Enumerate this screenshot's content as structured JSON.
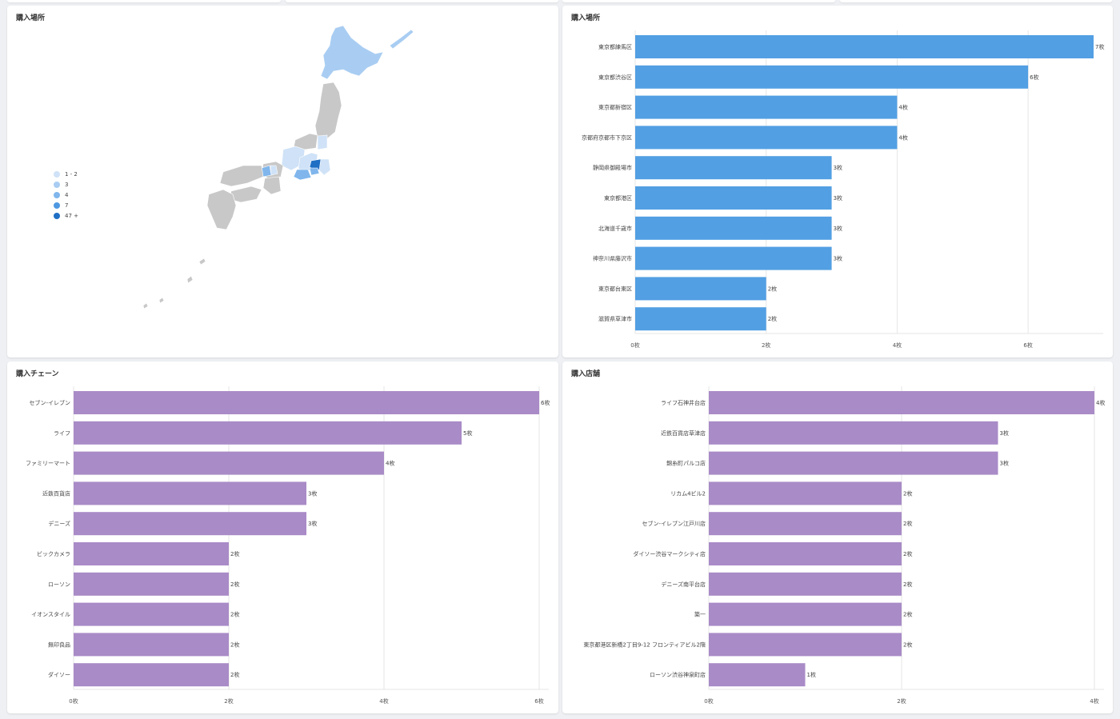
{
  "panels": {
    "map": {
      "title": "購入場所"
    },
    "places": {
      "title": "購入場所"
    },
    "chains": {
      "title": "購入チェーン"
    },
    "stores": {
      "title": "購入店舗"
    }
  },
  "map_legend": [
    {
      "label": "1 - 2",
      "color": "#cfe2f7"
    },
    {
      "label": "3",
      "color": "#a9cdf2"
    },
    {
      "label": "4",
      "color": "#80b6ec"
    },
    {
      "label": "7",
      "color": "#4e98e2"
    },
    {
      "label": "47 +",
      "color": "#1f6fc4"
    }
  ],
  "map_colors": {
    "other": "#c8c8c8",
    "hokkaido": "#a9cdf2",
    "tokyo": "#1f6fc4",
    "light": "#cfe2f7",
    "mid": "#80b6ec"
  },
  "chart_data": [
    {
      "type": "bar",
      "orientation": "horizontal",
      "color": "#529fe3",
      "categories": [
        "東京都練馬区",
        "東京都渋谷区",
        "東京都新宿区",
        "京都府京都市下京区",
        "静岡県御殿場市",
        "東京都港区",
        "北海道千歳市",
        "神奈川県藤沢市",
        "東京都台東区",
        "滋賀県草津市"
      ],
      "values": [
        7,
        6,
        4,
        4,
        3,
        3,
        3,
        3,
        2,
        2
      ],
      "value_labels": [
        "7枚",
        "6枚",
        "4枚",
        "4枚",
        "3枚",
        "3枚",
        "3枚",
        "3枚",
        "2枚",
        "2枚"
      ],
      "xlim": [
        0,
        7
      ],
      "xticks": [
        0,
        2,
        4,
        6
      ],
      "xtick_labels": [
        "0枚",
        "2枚",
        "4枚",
        "6枚"
      ],
      "grid": true
    },
    {
      "type": "bar",
      "orientation": "horizontal",
      "color": "#a98bc7",
      "categories": [
        "セブン-イレブン",
        "ライフ",
        "ファミリーマート",
        "近鉄百貨店",
        "デニーズ",
        "ビックカメラ",
        "ローソン",
        "イオンスタイル",
        "無印良品",
        "ダイソー"
      ],
      "values": [
        6,
        5,
        4,
        3,
        3,
        2,
        2,
        2,
        2,
        2
      ],
      "value_labels": [
        "6枚",
        "5枚",
        "4枚",
        "3枚",
        "3枚",
        "2枚",
        "2枚",
        "2枚",
        "2枚",
        "2枚"
      ],
      "xlim": [
        0,
        6
      ],
      "xticks": [
        0,
        2,
        4,
        6
      ],
      "xtick_labels": [
        "0枚",
        "2枚",
        "4枚",
        "6枚"
      ],
      "grid": true
    },
    {
      "type": "bar",
      "orientation": "horizontal",
      "color": "#a98bc7",
      "categories": [
        "ライフ石神井台店",
        "近鉄百貨店草津店",
        "錦糸町パルコ店",
        "リカム4ビル2",
        "セブン-イレブン江戸川店",
        "ダイソー渋谷マークシティ店",
        "デニーズ南平台店",
        "築一",
        "東京都港区新橋2丁目9-12 フロンティアビル2階",
        "ローソン渋谷神泉町店"
      ],
      "values": [
        4,
        3,
        3,
        2,
        2,
        2,
        2,
        2,
        2,
        1
      ],
      "value_labels": [
        "4枚",
        "3枚",
        "3枚",
        "2枚",
        "2枚",
        "2枚",
        "2枚",
        "2枚",
        "2枚",
        "1枚"
      ],
      "xlim": [
        0,
        4
      ],
      "xticks": [
        0,
        2,
        4
      ],
      "xtick_labels": [
        "0枚",
        "2枚",
        "4枚"
      ],
      "grid": true
    }
  ]
}
